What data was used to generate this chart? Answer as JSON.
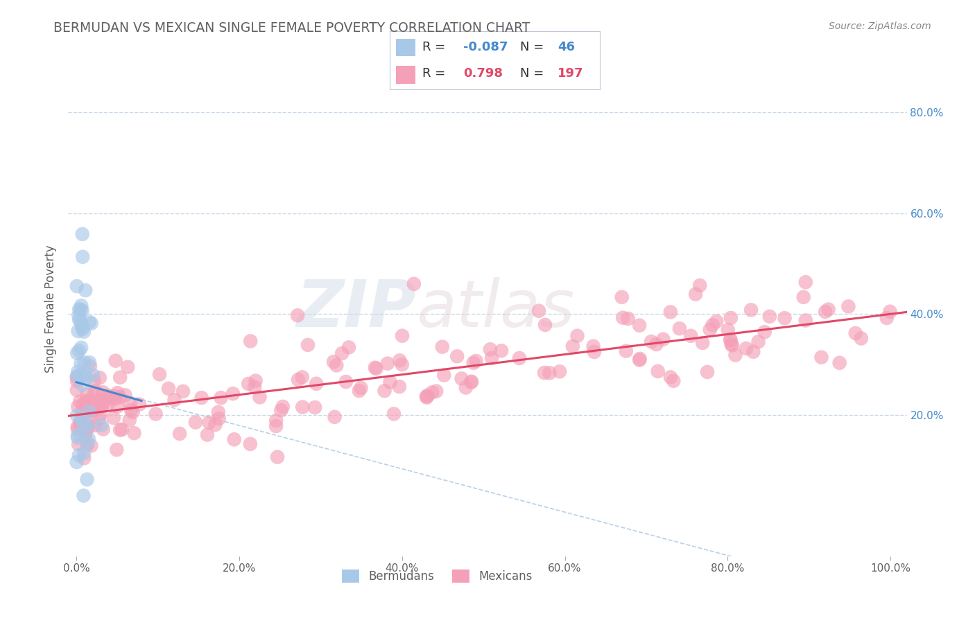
{
  "title": "BERMUDAN VS MEXICAN SINGLE FEMALE POVERTY CORRELATION CHART",
  "source": "Source: ZipAtlas.com",
  "ylabel": "Single Female Poverty",
  "xlim": [
    -0.01,
    1.02
  ],
  "ylim": [
    -0.08,
    0.9
  ],
  "xtick_vals": [
    0.0,
    0.2,
    0.4,
    0.6,
    0.8,
    1.0
  ],
  "xtick_labels": [
    "0.0%",
    "20.0%",
    "40.0%",
    "60.0%",
    "80.0%",
    "100.0%"
  ],
  "ytick_vals": [
    0.2,
    0.4,
    0.6,
    0.8
  ],
  "ytick_labels": [
    "20.0%",
    "40.0%",
    "60.0%",
    "80.0%"
  ],
  "bermudan_color": "#a8c8e8",
  "mexican_color": "#f4a0b8",
  "bermudan_line_color": "#4488cc",
  "mexican_line_color": "#e04868",
  "dashed_line_color": "#b8d0e8",
  "background_color": "#ffffff",
  "watermark_zip": "ZIP",
  "watermark_atlas": "atlas",
  "title_color": "#606060",
  "source_color": "#888888",
  "ytick_color": "#4488cc",
  "xtick_color": "#606060",
  "grid_color": "#c8d8e8",
  "legend_border_color": "#c0c8d8"
}
